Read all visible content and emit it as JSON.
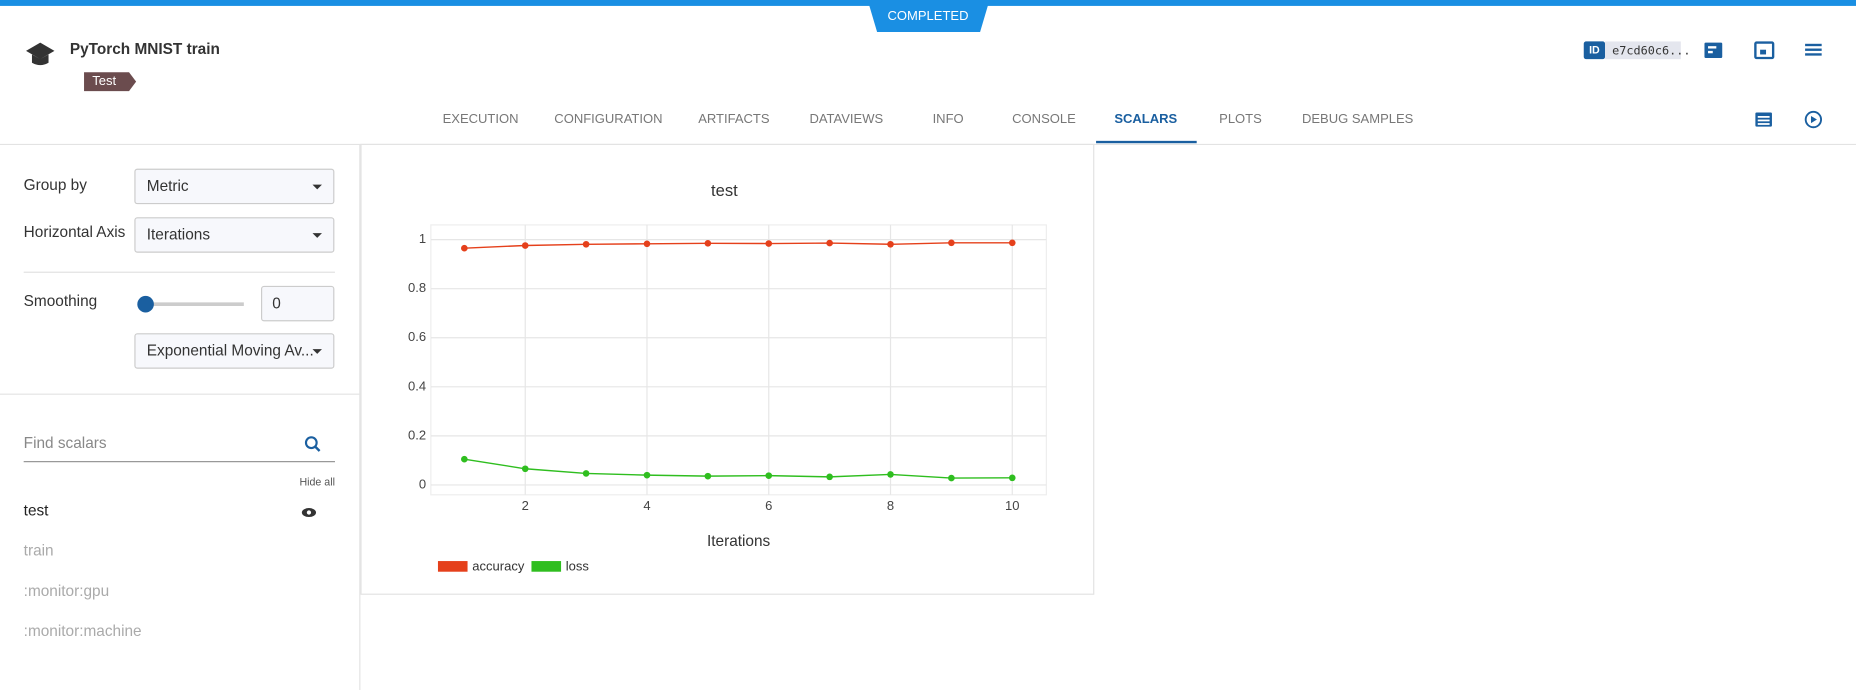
{
  "status": "COMPLETED",
  "header": {
    "title": "PyTorch MNIST train",
    "tag": "Test",
    "id_badge": "ID",
    "id": "e7cd60c6..."
  },
  "tabs": [
    "EXECUTION",
    "CONFIGURATION",
    "ARTIFACTS",
    "DATAVIEWS",
    "INFO",
    "CONSOLE",
    "SCALARS",
    "PLOTS",
    "DEBUG SAMPLES"
  ],
  "controls": {
    "group_by": {
      "label": "Group by",
      "value": "Metric"
    },
    "horizontal_axis": {
      "label": "Horizontal Axis",
      "value": "Iterations"
    },
    "smoothing": {
      "label": "Smoothing",
      "value": 0,
      "method": "Exponential Moving Av..."
    }
  },
  "scalars": {
    "search_placeholder": "Find scalars",
    "hide_all": "Hide all",
    "items": [
      "test",
      "train",
      ":monitor:gpu",
      ":monitor:machine"
    ]
  },
  "chart_data": {
    "type": "line",
    "title": "test",
    "x_label": "Iterations",
    "x": [
      1,
      2,
      3,
      4,
      5,
      6,
      7,
      8,
      9,
      10
    ],
    "xlim": [
      0.45,
      10.56
    ],
    "ylim": [
      -0.04,
      1.06
    ],
    "xticks": [
      2,
      4,
      6,
      8,
      10
    ],
    "yticks": [
      0,
      0.2,
      0.4,
      0.6,
      0.8,
      1
    ],
    "grid": true,
    "series": [
      {
        "name": "accuracy",
        "color": "#e5401b",
        "values": [
          0.965,
          0.976,
          0.981,
          0.983,
          0.985,
          0.984,
          0.986,
          0.981,
          0.987,
          0.987
        ]
      },
      {
        "name": "loss",
        "color": "#2fbe1f",
        "values": [
          0.105,
          0.066,
          0.047,
          0.04,
          0.036,
          0.038,
          0.033,
          0.043,
          0.028,
          0.029
        ]
      }
    ]
  }
}
